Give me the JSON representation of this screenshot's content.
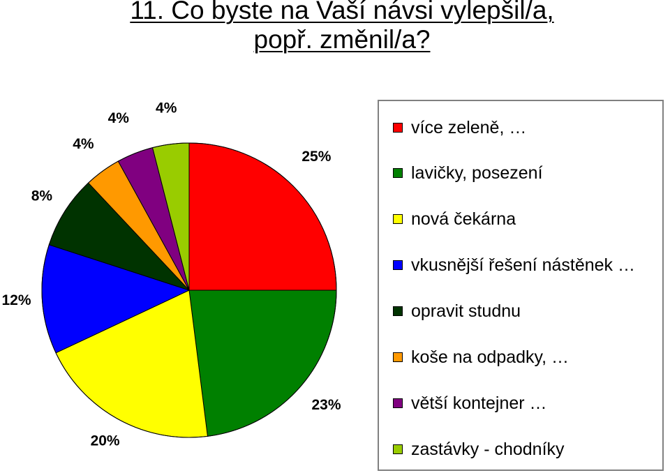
{
  "title_line1": "11. Co byste na Vaší návsi vylepšil/a,",
  "title_line2": "popř. změnil/a?",
  "chart_data": {
    "type": "pie",
    "title": "11. Co byste na Vaší návsi vylepšil/a, popř. změnil/a?",
    "legend_position": "right",
    "slices": [
      {
        "label": "více zeleně, …",
        "value": 25,
        "value_label": "25%",
        "color": "#ff0000"
      },
      {
        "label": "lavičky, posezení",
        "value": 23,
        "value_label": "23%",
        "color": "#008000"
      },
      {
        "label": "nová čekárna",
        "value": 20,
        "value_label": "20%",
        "color": "#ffff00"
      },
      {
        "label": "vkusnější řešení nástěnek …",
        "value": 12,
        "value_label": "12%",
        "color": "#0000ff"
      },
      {
        "label": "opravit studnu",
        "value": 8,
        "value_label": "8%",
        "color": "#003300"
      },
      {
        "label": "koše na odpadky, …",
        "value": 4,
        "value_label": "4%",
        "color": "#ff9900"
      },
      {
        "label": "větší kontejner …",
        "value": 4,
        "value_label": "4%",
        "color": "#800080"
      },
      {
        "label": "zastávky - chodníky",
        "value": 4,
        "value_label": "4%",
        "color": "#99cc00"
      }
    ]
  }
}
